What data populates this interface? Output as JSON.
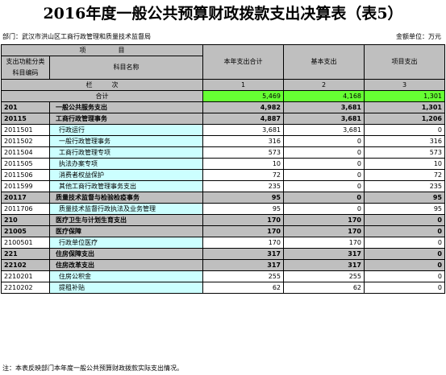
{
  "title": "2016年度一般公共预算财政拨款支出决算表（表5）",
  "department": "部门：武汉市洪山区工商行政管理和质量技术监督局",
  "unit": "金额单位：万元",
  "header": {
    "item": "项　　　　　目",
    "code_label": "支出功能分类科目编码",
    "name_label": "科目名称",
    "col_total": "本年支出合计",
    "col_basic": "基本支出",
    "col_project": "项目支出",
    "seq_label": "栏　　　次",
    "seq_total": "1",
    "seq_basic": "2",
    "seq_project": "3"
  },
  "total_row": {
    "label": "合计",
    "total": "5,469",
    "basic": "4,168",
    "project": "1,301"
  },
  "rows": [
    {
      "code": "201",
      "name": "一般公共服务支出",
      "total": "4,982",
      "basic": "3,681",
      "project": "1,301",
      "level": 1
    },
    {
      "code": "20115",
      "name": "工商行政管理事务",
      "total": "4,887",
      "basic": "3,681",
      "project": "1,206",
      "level": 2
    },
    {
      "code": "2011501",
      "name": "行政运行",
      "total": "3,681",
      "basic": "3,681",
      "project": "0",
      "level": 3
    },
    {
      "code": "2011502",
      "name": "一般行政管理事务",
      "total": "316",
      "basic": "0",
      "project": "316",
      "level": 3
    },
    {
      "code": "2011504",
      "name": "工商行政管理专项",
      "total": "573",
      "basic": "0",
      "project": "573",
      "level": 3
    },
    {
      "code": "2011505",
      "name": "执法办案专项",
      "total": "10",
      "basic": "0",
      "project": "10",
      "level": 3
    },
    {
      "code": "2011506",
      "name": "消费者权益保护",
      "total": "72",
      "basic": "0",
      "project": "72",
      "level": 3
    },
    {
      "code": "2011599",
      "name": "其他工商行政管理事务支出",
      "total": "235",
      "basic": "0",
      "project": "235",
      "level": 3
    },
    {
      "code": "20117",
      "name": "质量技术监督与检验检疫事务",
      "total": "95",
      "basic": "0",
      "project": "95",
      "level": 2
    },
    {
      "code": "2011706",
      "name": "质量技术监督行政执法及业务管理",
      "total": "95",
      "basic": "0",
      "project": "95",
      "level": 3
    },
    {
      "code": "210",
      "name": "医疗卫生与计划生育支出",
      "total": "170",
      "basic": "170",
      "project": "0",
      "level": 1
    },
    {
      "code": "21005",
      "name": "医疗保障",
      "total": "170",
      "basic": "170",
      "project": "0",
      "level": 2
    },
    {
      "code": "2100501",
      "name": "行政单位医疗",
      "total": "170",
      "basic": "170",
      "project": "0",
      "level": 3
    },
    {
      "code": "221",
      "name": "住房保障支出",
      "total": "317",
      "basic": "317",
      "project": "0",
      "level": 1
    },
    {
      "code": "22102",
      "name": "住房改革支出",
      "total": "317",
      "basic": "317",
      "project": "0",
      "level": 2
    },
    {
      "code": "2210201",
      "name": "住房公积金",
      "total": "255",
      "basic": "255",
      "project": "0",
      "level": 3
    },
    {
      "code": "2210202",
      "name": "提租补贴",
      "total": "62",
      "basic": "62",
      "project": "0",
      "level": 3
    }
  ],
  "footnote": "注：本表反映部门本年度一般公共预算财政拨款实际支出情况。"
}
